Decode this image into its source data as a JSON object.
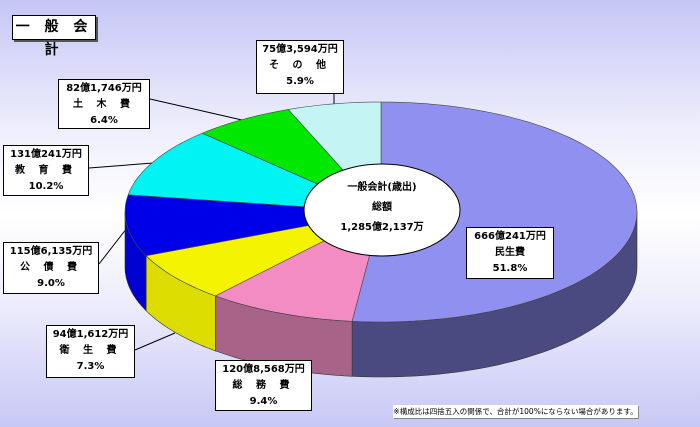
{
  "title": "一 般 会 計",
  "chart_data": {
    "type": "pie",
    "style": "3d-doughnut",
    "start": "12 o'clock, clockwise",
    "center_label": {
      "line1": "一般会計(歳出)",
      "line2": "総額",
      "line3": "1,285億2,137万"
    },
    "slices": [
      {
        "name": "民生費",
        "amount": "666億241万円",
        "percent_label": "51.8%",
        "value": 51.8,
        "color": "#9090f0",
        "side": "#4a4a80"
      },
      {
        "name": "総 務 費",
        "amount": "120億8,568万円",
        "percent_label": "9.4%",
        "value": 9.4,
        "color": "#f48cc4",
        "side": "#a86488"
      },
      {
        "name": "衛 生 費",
        "amount": "94億1,612万円",
        "percent_label": "7.3%",
        "value": 7.3,
        "color": "#f4f400",
        "side": "#dcdc00"
      },
      {
        "name": "公 債 費",
        "amount": "115億6,135万円",
        "percent_label": "9.0%",
        "value": 9.0,
        "color": "#0000e8",
        "side": "#0000d0"
      },
      {
        "name": "教 育 費",
        "amount": "131億241万円",
        "percent_label": "10.2%",
        "value": 10.2,
        "color": "#00f4f4",
        "side": "#00c8c8"
      },
      {
        "name": "土 木 費",
        "amount": "82億1,746万円",
        "percent_label": "6.4%",
        "value": 6.4,
        "color": "#00e800",
        "side": "#00b000"
      },
      {
        "name": "そ の 他",
        "amount": "75億3,594万円",
        "percent_label": "5.9%",
        "value": 5.9,
        "color": "#c4f4f4",
        "side": "#90c0c0"
      }
    ]
  },
  "note": "※構成比は四捨五入の関係で、合計が100%にならない場合があります。"
}
